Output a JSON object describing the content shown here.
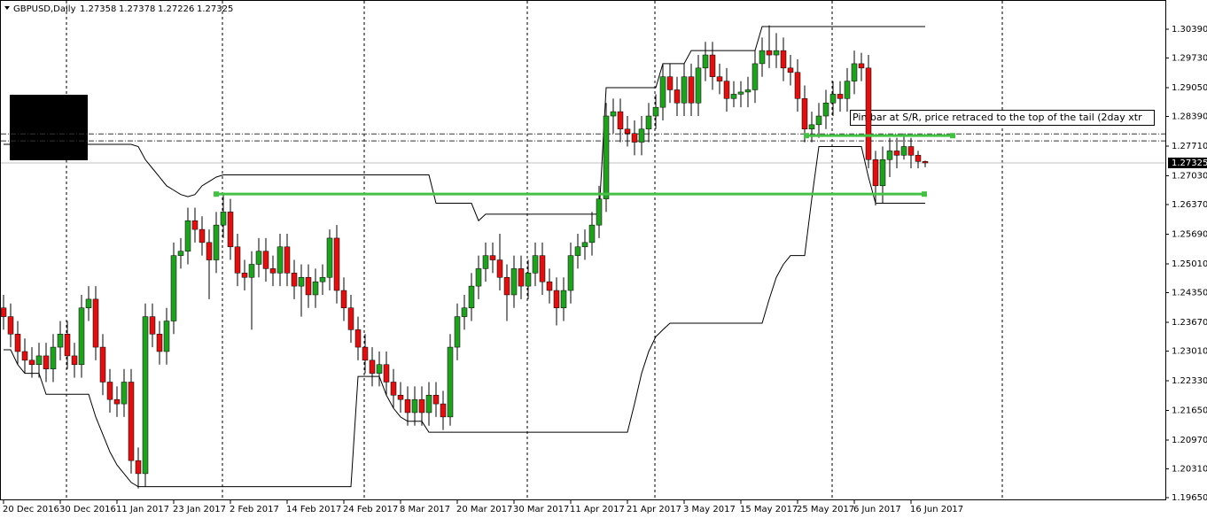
{
  "chart_data": {
    "type": "candlestick",
    "title": "GBPUSD,Daily",
    "annotation": "Pin bar at S/R, price retraced to the top of the tail (2day xtr",
    "up_color": "#22a022",
    "down_color": "#dd1111",
    "categories": [
      "20 Dec 2016",
      null,
      null,
      null,
      null,
      null,
      null,
      null,
      "30 Dec 2016",
      null,
      null,
      null,
      null,
      null,
      null,
      null,
      "11 Jan 2017",
      null,
      null,
      null,
      null,
      null,
      null,
      null,
      "23 Jan 2017",
      null,
      null,
      null,
      null,
      null,
      null,
      null,
      "2 Feb 2017",
      null,
      null,
      null,
      null,
      null,
      null,
      null,
      "14 Feb 2017",
      null,
      null,
      null,
      null,
      null,
      null,
      null,
      "24 Feb 2017",
      null,
      null,
      null,
      null,
      null,
      null,
      null,
      "8 Mar 2017",
      null,
      null,
      null,
      null,
      null,
      null,
      null,
      "20 Mar 2017",
      null,
      null,
      null,
      null,
      null,
      null,
      null,
      "30 Mar 2017",
      null,
      null,
      null,
      null,
      null,
      null,
      null,
      "11 Apr 2017",
      null,
      null,
      null,
      null,
      null,
      null,
      null,
      "21 Apr 2017",
      null,
      null,
      null,
      null,
      null,
      null,
      null,
      "3 May 2017",
      null,
      null,
      null,
      null,
      null,
      null,
      null,
      "15 May 2017",
      null,
      null,
      null,
      null,
      null,
      null,
      null,
      "25 May 2017",
      null,
      null,
      null,
      null,
      null,
      null,
      null,
      "6 Jun 2017",
      null,
      null,
      null,
      null,
      null,
      null,
      null,
      "16 Jun 2017",
      null,
      null
    ],
    "open": [
      1.24,
      1.238,
      1.234,
      1.23,
      1.228,
      1.227,
      1.229,
      1.226,
      1.231,
      1.234,
      1.229,
      1.227,
      1.24,
      1.242,
      1.231,
      1.223,
      1.219,
      1.218,
      1.223,
      1.205,
      1.202,
      1.238,
      1.234,
      1.23,
      1.237,
      1.252,
      1.253,
      1.26,
      1.258,
      1.255,
      1.251,
      1.259,
      1.262,
      1.254,
      1.248,
      1.247,
      1.25,
      1.253,
      1.249,
      1.248,
      1.254,
      1.248,
      1.245,
      1.247,
      1.243,
      1.246,
      1.247,
      1.256,
      1.244,
      1.24,
      1.235,
      1.231,
      1.228,
      1.225,
      1.227,
      1.223,
      1.22,
      1.219,
      1.216,
      1.219,
      1.216,
      1.22,
      1.218,
      1.215,
      1.231,
      1.238,
      1.24,
      1.245,
      1.249,
      1.252,
      1.251,
      1.247,
      1.243,
      1.249,
      1.245,
      1.248,
      1.252,
      1.246,
      1.244,
      1.24,
      1.244,
      1.252,
      1.254,
      1.255,
      1.259,
      1.265,
      1.284,
      1.285,
      1.281,
      1.28,
      1.278,
      1.281,
      1.284,
      1.286,
      1.293,
      1.29,
      1.287,
      1.293,
      1.287,
      1.295,
      1.298,
      1.293,
      1.292,
      1.288,
      1.289,
      1.2895,
      1.29,
      1.296,
      1.299,
      1.298,
      1.299,
      1.295,
      1.294,
      1.288,
      1.281,
      1.282,
      1.284,
      1.287,
      1.289,
      1.288,
      1.292,
      1.296,
      1.295,
      1.274,
      1.268,
      1.274,
      1.276,
      1.275,
      1.277,
      1.275,
      1.27358
    ],
    "high": [
      1.243,
      1.241,
      1.237,
      1.233,
      1.231,
      1.232,
      1.232,
      1.234,
      1.237,
      1.237,
      1.232,
      1.243,
      1.245,
      1.245,
      1.234,
      1.226,
      1.222,
      1.226,
      1.226,
      1.208,
      1.241,
      1.241,
      1.237,
      1.24,
      1.255,
      1.256,
      1.263,
      1.263,
      1.261,
      1.258,
      1.262,
      1.266,
      1.265,
      1.257,
      1.251,
      1.253,
      1.256,
      1.256,
      1.252,
      1.257,
      1.257,
      1.251,
      1.25,
      1.25,
      1.249,
      1.25,
      1.258,
      1.259,
      1.247,
      1.243,
      1.238,
      1.234,
      1.231,
      1.23,
      1.23,
      1.226,
      1.223,
      1.222,
      1.222,
      1.222,
      1.223,
      1.223,
      1.221,
      1.234,
      1.241,
      1.243,
      1.248,
      1.252,
      1.255,
      1.255,
      1.257,
      1.25,
      1.252,
      1.252,
      1.251,
      1.255,
      1.255,
      1.249,
      1.247,
      1.247,
      1.255,
      1.257,
      1.258,
      1.262,
      1.268,
      1.287,
      1.288,
      1.288,
      1.284,
      1.283,
      1.284,
      1.287,
      1.289,
      1.296,
      1.296,
      1.293,
      1.296,
      1.296,
      1.298,
      1.301,
      1.301,
      1.296,
      1.295,
      1.292,
      1.292,
      1.293,
      1.299,
      1.302,
      1.3048,
      1.303,
      1.302,
      1.298,
      1.297,
      1.291,
      1.285,
      1.287,
      1.29,
      1.292,
      1.292,
      1.295,
      1.299,
      1.2985,
      1.298,
      1.276,
      1.277,
      1.279,
      1.279,
      1.28,
      1.279,
      1.276,
      1.27378
    ],
    "low": [
      1.235,
      1.231,
      1.227,
      1.225,
      1.224,
      1.224,
      1.223,
      1.223,
      1.228,
      1.226,
      1.224,
      1.224,
      1.237,
      1.228,
      1.22,
      1.216,
      1.215,
      1.215,
      1.202,
      1.1986,
      1.199,
      1.231,
      1.227,
      1.227,
      1.234,
      1.249,
      1.25,
      1.255,
      1.252,
      1.242,
      1.248,
      1.256,
      1.251,
      1.245,
      1.244,
      1.235,
      1.247,
      1.246,
      1.245,
      1.245,
      1.245,
      1.242,
      1.238,
      1.24,
      1.24,
      1.243,
      1.244,
      1.241,
      1.237,
      1.232,
      1.228,
      1.225,
      1.222,
      1.222,
      1.22,
      1.217,
      1.216,
      1.213,
      1.213,
      1.213,
      1.213,
      1.215,
      1.212,
      1.213,
      1.228,
      1.235,
      1.237,
      1.242,
      1.246,
      1.248,
      1.244,
      1.237,
      1.24,
      1.242,
      1.242,
      1.245,
      1.243,
      1.241,
      1.236,
      1.237,
      1.241,
      1.249,
      1.251,
      1.252,
      1.256,
      1.262,
      1.28,
      1.278,
      1.277,
      1.275,
      1.275,
      1.278,
      1.281,
      1.283,
      1.287,
      1.284,
      1.284,
      1.284,
      1.284,
      1.292,
      1.29,
      1.289,
      1.285,
      1.286,
      1.286,
      1.286,
      1.287,
      1.293,
      1.295,
      1.295,
      1.292,
      1.291,
      1.285,
      1.278,
      1.278,
      1.279,
      1.281,
      1.284,
      1.285,
      1.285,
      1.289,
      1.292,
      1.272,
      1.2635,
      1.264,
      1.27,
      1.272,
      1.274,
      1.272,
      1.272,
      1.27226
    ],
    "close": [
      1.238,
      1.234,
      1.23,
      1.228,
      1.227,
      1.229,
      1.226,
      1.231,
      1.234,
      1.229,
      1.227,
      1.24,
      1.242,
      1.231,
      1.223,
      1.219,
      1.218,
      1.223,
      1.205,
      1.202,
      1.238,
      1.234,
      1.23,
      1.237,
      1.252,
      1.253,
      1.26,
      1.258,
      1.255,
      1.251,
      1.259,
      1.262,
      1.254,
      1.248,
      1.247,
      1.25,
      1.253,
      1.249,
      1.248,
      1.254,
      1.248,
      1.245,
      1.247,
      1.243,
      1.246,
      1.247,
      1.256,
      1.244,
      1.24,
      1.235,
      1.231,
      1.228,
      1.225,
      1.227,
      1.223,
      1.22,
      1.219,
      1.216,
      1.219,
      1.216,
      1.22,
      1.218,
      1.215,
      1.231,
      1.238,
      1.24,
      1.245,
      1.249,
      1.252,
      1.251,
      1.247,
      1.243,
      1.249,
      1.245,
      1.248,
      1.252,
      1.246,
      1.244,
      1.24,
      1.244,
      1.252,
      1.254,
      1.255,
      1.259,
      1.265,
      1.284,
      1.285,
      1.281,
      1.28,
      1.278,
      1.281,
      1.284,
      1.286,
      1.293,
      1.29,
      1.287,
      1.293,
      1.287,
      1.295,
      1.298,
      1.293,
      1.292,
      1.288,
      1.289,
      1.2895,
      1.29,
      1.296,
      1.299,
      1.298,
      1.299,
      1.295,
      1.294,
      1.288,
      1.281,
      1.282,
      1.284,
      1.287,
      1.289,
      1.288,
      1.292,
      1.296,
      1.295,
      1.274,
      1.268,
      1.274,
      1.276,
      1.275,
      1.277,
      1.275,
      1.27358,
      1.27325
    ],
    "upper_channel": [
      1.2775,
      1.2775,
      1.2775,
      1.2775,
      1.2775,
      1.2775,
      1.2775,
      1.2775,
      1.2775,
      1.2775,
      1.2775,
      1.2775,
      1.2775,
      1.2775,
      1.2775,
      1.2775,
      1.2775,
      1.2775,
      1.2775,
      1.277,
      1.274,
      1.272,
      1.27,
      1.268,
      1.267,
      1.266,
      1.2655,
      1.266,
      1.268,
      1.269,
      1.27,
      1.2705,
      1.2705,
      1.2705,
      1.2705,
      1.2705,
      1.2705,
      1.2705,
      1.2705,
      1.2705,
      1.2705,
      1.2705,
      1.2705,
      1.2705,
      1.2705,
      1.2705,
      1.2705,
      1.2705,
      1.2705,
      1.2705,
      1.2705,
      1.2705,
      1.2705,
      1.2705,
      1.2705,
      1.2705,
      1.2705,
      1.2705,
      1.2705,
      1.2705,
      1.2705,
      1.264,
      1.264,
      1.264,
      1.264,
      1.264,
      1.264,
      1.26,
      1.2615,
      1.2615,
      1.2615,
      1.2615,
      1.2615,
      1.2615,
      1.2615,
      1.2615,
      1.2615,
      1.2615,
      1.2615,
      1.2615,
      1.2615,
      1.2615,
      1.2615,
      1.2615,
      1.2615,
      1.2905,
      1.2905,
      1.2905,
      1.2905,
      1.2905,
      1.2905,
      1.2905,
      1.2905,
      1.296,
      1.296,
      1.296,
      1.296,
      1.299,
      1.299,
      1.299,
      1.299,
      1.299,
      1.299,
      1.299,
      1.299,
      1.299,
      1.299,
      1.3045,
      1.3045,
      1.3045,
      1.3045,
      1.3045,
      1.3045,
      1.3045,
      1.3045,
      1.3045,
      1.3045,
      1.3045,
      1.3045,
      1.3045,
      1.3045,
      1.3045,
      1.3045,
      1.3045,
      1.3045,
      1.3045,
      1.3045,
      1.3045,
      1.3045,
      1.3045,
      1.3045
    ],
    "lower_channel": [
      1.2304,
      1.2304,
      1.227,
      1.225,
      1.225,
      1.225,
      1.2202,
      1.2202,
      1.2202,
      1.2202,
      1.2202,
      1.2202,
      1.2202,
      1.215,
      1.211,
      1.207,
      1.204,
      1.202,
      1.2,
      1.199,
      1.199,
      1.199,
      1.199,
      1.199,
      1.199,
      1.199,
      1.199,
      1.199,
      1.199,
      1.199,
      1.199,
      1.199,
      1.199,
      1.199,
      1.199,
      1.199,
      1.199,
      1.199,
      1.199,
      1.199,
      1.199,
      1.199,
      1.199,
      1.199,
      1.199,
      1.199,
      1.199,
      1.199,
      1.199,
      1.199,
      1.2243,
      1.2243,
      1.2243,
      1.2243,
      1.22,
      1.217,
      1.215,
      1.214,
      1.214,
      1.214,
      1.2115,
      1.2115,
      1.2115,
      1.2115,
      1.2115,
      1.2115,
      1.2115,
      1.2115,
      1.2115,
      1.2115,
      1.2115,
      1.2115,
      1.2115,
      1.2115,
      1.2115,
      1.2115,
      1.2115,
      1.2115,
      1.2115,
      1.2115,
      1.2115,
      1.2115,
      1.2115,
      1.2115,
      1.2115,
      1.2115,
      1.2115,
      1.2115,
      1.2115,
      1.218,
      1.225,
      1.23,
      1.2334,
      1.235,
      1.2365,
      1.2365,
      1.2365,
      1.2365,
      1.2365,
      1.2365,
      1.2365,
      1.2365,
      1.2365,
      1.2365,
      1.2365,
      1.2365,
      1.2365,
      1.2365,
      1.242,
      1.247,
      1.25,
      1.252,
      1.252,
      1.252,
      1.265,
      1.277,
      1.277,
      1.277,
      1.277,
      1.277,
      1.277,
      1.277,
      1.27,
      1.264,
      1.264,
      1.264,
      1.264,
      1.264,
      1.264,
      1.264,
      1.264
    ],
    "levels": [
      1.2661,
      1.2795
    ],
    "dash_levels": [
      1.2799,
      1.2783
    ],
    "ylim": [
      1.19589,
      1.3106
    ],
    "yticks": [
      {
        "value": 1.3039,
        "label": "1.30390"
      },
      {
        "value": 1.2973,
        "label": "1.29730"
      },
      {
        "value": 1.2905,
        "label": "1.29050"
      },
      {
        "value": 1.2839,
        "label": "1.28390"
      },
      {
        "value": 1.2771,
        "label": "1.27710"
      },
      {
        "value": 1.2703,
        "label": "1.27030"
      },
      {
        "value": 1.2637,
        "label": "1.26370"
      },
      {
        "value": 1.2569,
        "label": "1.25690"
      },
      {
        "value": 1.2501,
        "label": "1.25010"
      },
      {
        "value": 1.2435,
        "label": "1.24350"
      },
      {
        "value": 1.2367,
        "label": "1.23670"
      },
      {
        "value": 1.2301,
        "label": "1.23010"
      },
      {
        "value": 1.2233,
        "label": "1.22330"
      },
      {
        "value": 1.2165,
        "label": "1.21650"
      },
      {
        "value": 1.2097,
        "label": "1.20970"
      },
      {
        "value": 1.2031,
        "label": "1.20310"
      },
      {
        "value": 1.1965,
        "label": "1.19650"
      }
    ]
  }
}
